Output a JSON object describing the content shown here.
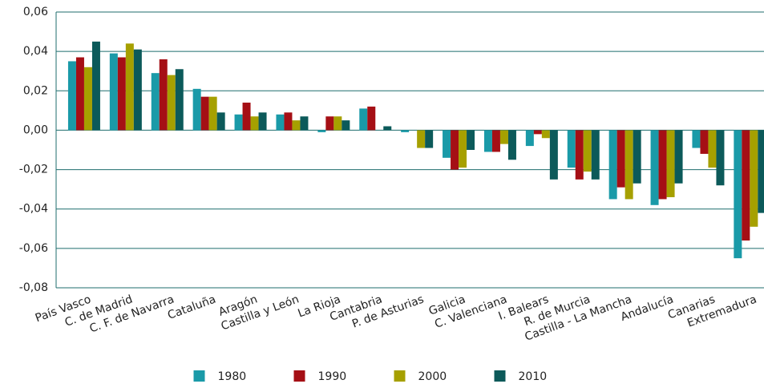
{
  "chart_data": {
    "type": "bar",
    "categories": [
      "País Vasco",
      "C. de Madrid",
      "C. F. de Navarra",
      "Cataluña",
      "Aragón",
      "Castilla y León",
      "La Rioja",
      "Cantabria",
      "P. de Asturias",
      "Galicia",
      "C. Valenciana",
      "I. Balears",
      "R. de Murcia",
      "Castilla - La Mancha",
      "Andalucía",
      "Canarias",
      "Extremadura"
    ],
    "series": [
      {
        "name": "1980",
        "color": "#1a9aa8",
        "values": [
          0.035,
          0.039,
          0.029,
          0.021,
          0.008,
          0.008,
          -0.001,
          0.011,
          -0.001,
          -0.014,
          -0.011,
          -0.008,
          -0.019,
          -0.035,
          -0.038,
          -0.009,
          -0.065
        ]
      },
      {
        "name": "1990",
        "color": "#a50f15",
        "values": [
          0.037,
          0.037,
          0.036,
          0.017,
          0.014,
          0.009,
          0.007,
          0.012,
          0,
          -0.02,
          -0.011,
          -0.002,
          -0.025,
          -0.029,
          -0.035,
          -0.012,
          -0.056
        ]
      },
      {
        "name": "2000",
        "color": "#a6a000",
        "values": [
          0.032,
          0.044,
          0.028,
          0.017,
          0.007,
          0.005,
          0.007,
          0,
          -0.009,
          -0.019,
          -0.007,
          -0.004,
          -0.021,
          -0.035,
          -0.034,
          -0.019,
          -0.049
        ]
      },
      {
        "name": "2010",
        "color": "#0c5a5a",
        "values": [
          0.045,
          0.041,
          0.031,
          0.009,
          0.009,
          0.007,
          0.005,
          0.002,
          -0.009,
          -0.01,
          -0.015,
          -0.025,
          -0.025,
          -0.027,
          -0.027,
          -0.028,
          -0.042
        ]
      }
    ],
    "ylim": [
      -0.08,
      0.06
    ],
    "yticks": [
      {
        "value": -0.08,
        "label": "-0,08"
      },
      {
        "value": -0.06,
        "label": "-0,06"
      },
      {
        "value": -0.04,
        "label": "-0,04"
      },
      {
        "value": -0.02,
        "label": "-0,02"
      },
      {
        "value": 0,
        "label": "0,00"
      },
      {
        "value": 0.02,
        "label": "0,02"
      },
      {
        "value": 0.04,
        "label": "0,04"
      },
      {
        "value": 0.06,
        "label": "0,06"
      }
    ],
    "grid": true
  }
}
